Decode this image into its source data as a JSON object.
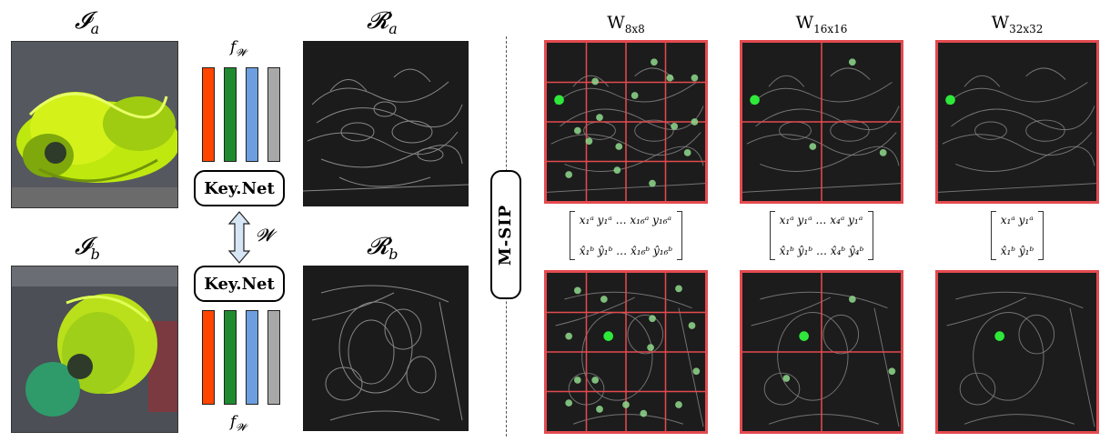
{
  "left": {
    "image_a_label": "𝓘",
    "image_a_sub": "a",
    "image_b_label": "𝓘",
    "image_b_sub": "b",
    "response_a_label": "𝓡",
    "response_a_sub": "a",
    "response_b_label": "𝓡",
    "response_b_sub": "b",
    "fw_label": "f",
    "fw_sub": "𝓦",
    "warp_label": "𝓦",
    "keynet_label": "Key.Net",
    "bar_colors": [
      "#ff4500",
      "#1f8a2f",
      "#6d9fe0",
      "#a8a8a8"
    ]
  },
  "msip_label": "M-SIP",
  "windows": [
    {
      "title": "W",
      "sub": "8x8",
      "grid": 4,
      "matrix_top": "x₁ᵃ y₁ᵃ   …   x₁₆ᵃ y₁₆ᵃ",
      "matrix_bottom": "x̂₁ᵇ ŷ₁ᵇ   …   x̂₁₆ᵇ ŷ₁₆ᵇ"
    },
    {
      "title": "W",
      "sub": "16x16",
      "grid": 2,
      "matrix_top": "x₁ᵃ y₁ᵃ   …   x₄ᵃ y₁ᵃ",
      "matrix_bottom": "x̂₁ᵇ ŷ₁ᵇ   …   x̂₄ᵇ ŷ₄ᵇ"
    },
    {
      "title": "W",
      "sub": "32x32",
      "grid": 1,
      "matrix_top": "x₁ᵃ y₁ᵃ",
      "matrix_bottom": "x̂₁ᵇ ŷ₁ᵇ"
    }
  ],
  "colors": {
    "grid_red": "#e34a4f",
    "keypoint_green": "#2ee83a",
    "keypoint_faint": "#8fd98c"
  }
}
